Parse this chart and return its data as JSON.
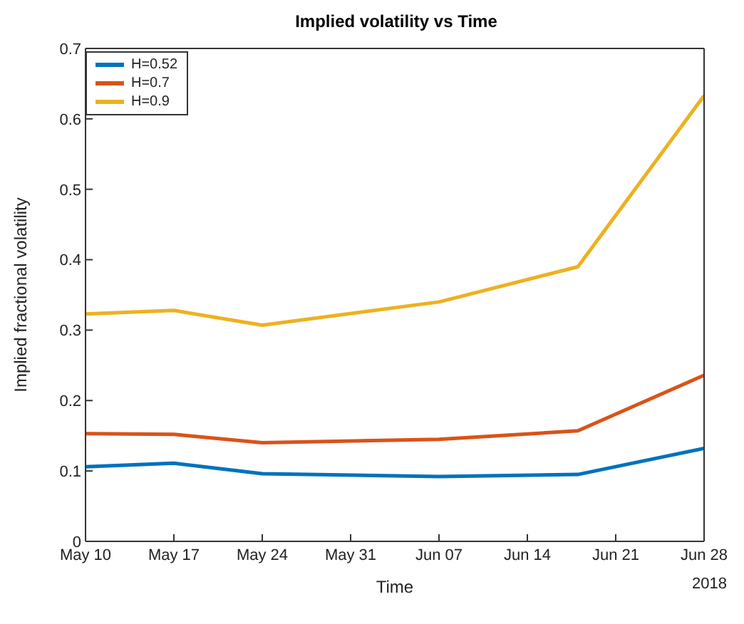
{
  "chart_data": {
    "type": "line",
    "title": "Implied volatility vs Time",
    "xlabel": "Time",
    "ylabel": "Implied fractional volatility",
    "x": [
      "2018-05-10",
      "2018-05-17",
      "2018-05-24",
      "2018-06-07",
      "2018-06-18",
      "2018-06-28"
    ],
    "series": [
      {
        "name": "H=0.52",
        "color": "#0072bd",
        "values": [
          0.106,
          0.111,
          0.096,
          0.092,
          0.095,
          0.132
        ]
      },
      {
        "name": "H=0.7",
        "color": "#d95319",
        "values": [
          0.153,
          0.152,
          0.14,
          0.145,
          0.157,
          0.236
        ]
      },
      {
        "name": "H=0.9",
        "color": "#edb120",
        "values": [
          0.323,
          0.328,
          0.307,
          0.34,
          0.39,
          0.633
        ]
      }
    ],
    "xlim": [
      "2018-05-10",
      "2018-06-28"
    ],
    "xticks": [
      {
        "value": "2018-05-10",
        "label": "May 10"
      },
      {
        "value": "2018-05-17",
        "label": "May 17"
      },
      {
        "value": "2018-05-24",
        "label": "May 24"
      },
      {
        "value": "2018-05-31",
        "label": "May 31"
      },
      {
        "value": "2018-06-07",
        "label": "Jun 07"
      },
      {
        "value": "2018-06-14",
        "label": "Jun 14"
      },
      {
        "value": "2018-06-21",
        "label": "Jun 21"
      },
      {
        "value": "2018-06-28",
        "label": "Jun 28"
      }
    ],
    "ylim": [
      0,
      0.7
    ],
    "yticks": [
      0,
      0.1,
      0.2,
      0.3,
      0.4,
      0.5,
      0.6,
      0.7
    ],
    "annotations": [
      "2018"
    ],
    "legend": "top left",
    "grid": false,
    "marker": "none",
    "line_style": "solid"
  }
}
